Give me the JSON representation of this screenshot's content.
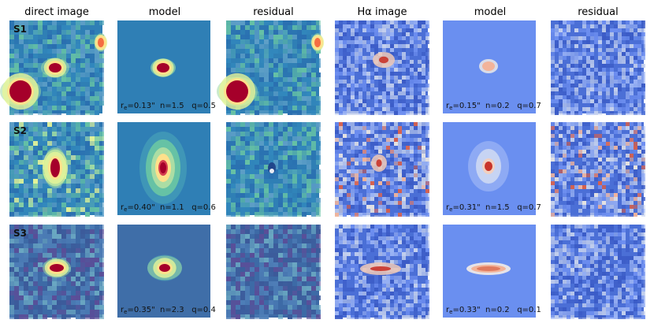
{
  "columns": [
    {
      "key": "direct",
      "title": "direct image"
    },
    {
      "key": "model1",
      "title": "model"
    },
    {
      "key": "resid1",
      "title": "residual"
    },
    {
      "key": "halpha",
      "title": "Hα image"
    },
    {
      "key": "model2",
      "title": "model"
    },
    {
      "key": "resid2",
      "title": "residual"
    }
  ],
  "rows": [
    {
      "label": "S1",
      "direct_params": {
        "re": "0.13\"",
        "n": "1.5",
        "q": "0.5"
      },
      "halpha_params": {
        "re": "0.15\"",
        "n": "0.2",
        "q": "0.7"
      }
    },
    {
      "label": "S2",
      "direct_params": {
        "re": "0.40\"",
        "n": "1.1",
        "q": "0.6"
      },
      "halpha_params": {
        "re": "0.31\"",
        "n": "1.5",
        "q": "0.7"
      }
    },
    {
      "label": "S3",
      "direct_params": {
        "re": "0.35\"",
        "n": "2.3",
        "q": "0.4"
      },
      "halpha_params": {
        "re": "0.33\"",
        "n": "0.2",
        "q": "0.1"
      }
    }
  ],
  "param_labels": {
    "re_prefix": "r",
    "re_sub": "e",
    "n_prefix": "n=",
    "q_prefix": "q="
  },
  "colors": {
    "spectral_bg": "#2f7fb5",
    "spectral_mid": "#66c2a5",
    "spectral_yellow": "#fee08b",
    "spectral_red": "#a5002a",
    "coolwarm_bg": "#4b6fd6",
    "coolwarm_light": "#dcdde6",
    "coolwarm_red": "#c9342a"
  }
}
